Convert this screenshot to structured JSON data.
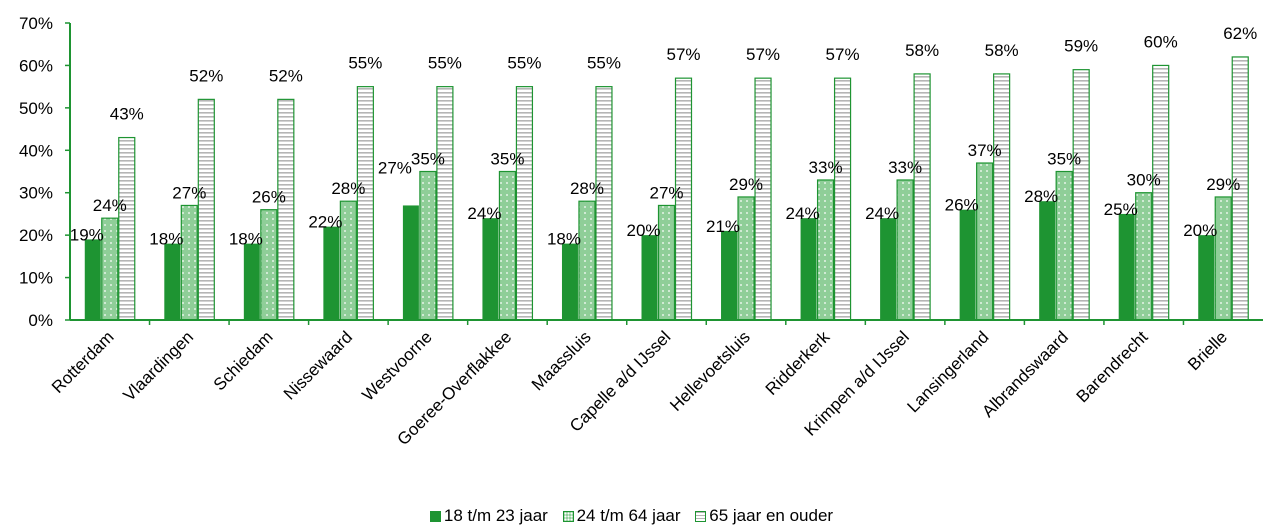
{
  "colors": {
    "primary": "#1e9432",
    "medium": "#8fce98",
    "stripe": "#b5b5b5",
    "axis": "#1e9432"
  },
  "chart_data": {
    "type": "bar",
    "ylim": [
      0,
      70
    ],
    "yticks": [
      "0%",
      "10%",
      "20%",
      "30%",
      "40%",
      "50%",
      "60%",
      "70%"
    ],
    "ytick_values": [
      0,
      10,
      20,
      30,
      40,
      50,
      60,
      70
    ],
    "categories": [
      "Rotterdam",
      "Vlaardingen",
      "Schiedam",
      "Nissewaard",
      "Westvoorne",
      "Goeree-Overflakkee",
      "Maassluis",
      "Capelle a/d IJssel",
      "Hellevoetsluis",
      "Ridderkerk",
      "Krimpen a/d IJssel",
      "Lansingerland",
      "Albrandswaard",
      "Barendrecht",
      "Brielle"
    ],
    "series": [
      {
        "name": "18 t/m 23 jaar",
        "pattern": "solid",
        "values": [
          19,
          18,
          18,
          22,
          27,
          24,
          18,
          20,
          21,
          24,
          24,
          26,
          28,
          25,
          20
        ],
        "labels": [
          "19%",
          "18%",
          "18%",
          "22%",
          "",
          "24%",
          "18%",
          "20%",
          "21%",
          "24%",
          "24%",
          "26%",
          "28%",
          "25%",
          "20%"
        ]
      },
      {
        "name": "24 t/m 64 jaar",
        "pattern": "dotted",
        "values": [
          24,
          27,
          26,
          28,
          35,
          35,
          28,
          27,
          29,
          33,
          33,
          37,
          35,
          30,
          29
        ],
        "labels": [
          "24%",
          "27%",
          "26%",
          "28%",
          "35%",
          "35%",
          "28%",
          "27%",
          "29%",
          "33%",
          "33%",
          "37%",
          "35%",
          "30%",
          "29%"
        ]
      },
      {
        "name": "65 jaar en ouder",
        "pattern": "striped",
        "values": [
          43,
          52,
          52,
          55,
          55,
          55,
          55,
          57,
          57,
          57,
          58,
          58,
          59,
          60,
          62
        ],
        "labels": [
          "43%",
          "52%",
          "52%",
          "55%",
          "55%",
          "55%",
          "55%",
          "57%",
          "57%",
          "57%",
          "58%",
          "58%",
          "59%",
          "60%",
          "62%"
        ]
      }
    ],
    "extra_labels": [
      {
        "category_index": 4,
        "text": "27%"
      }
    ],
    "grid": false,
    "legend_position": "bottom"
  }
}
